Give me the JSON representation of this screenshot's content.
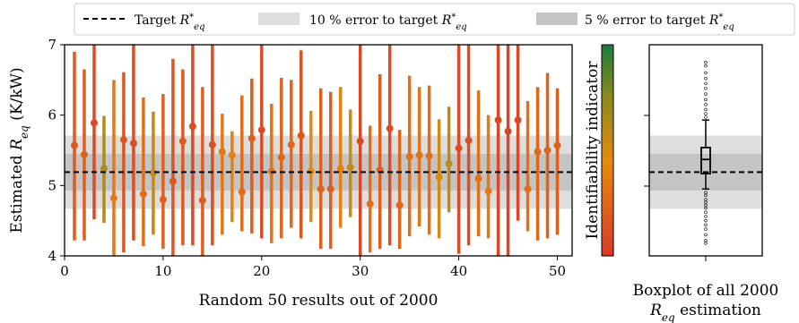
{
  "legend": {
    "target_label": "Target R*eq",
    "band10_label": "10 % error to target R*eq",
    "band5_label": "5 % error to target R*eq"
  },
  "colors": {
    "band10": "#dedede",
    "band5": "#c4c4c4",
    "colorbar_top": "#1e7a3c",
    "colorbar_mid": "#e08a10",
    "colorbar_bottom": "#d83a2a"
  },
  "main_plot": {
    "ylabel": "Estimated R_eq (K/kW)",
    "xlabel": "Random 50 results out of 2000",
    "yticks": [
      "4",
      "5",
      "6",
      "7"
    ],
    "xticks": [
      "0",
      "10",
      "20",
      "30",
      "40",
      "50"
    ],
    "colorbar_label": "Identifiability indicator"
  },
  "box_plot": {
    "xlabel_line1": "Boxplot of all 2000",
    "xlabel_line2": "R_eq estimation"
  },
  "chart_data": [
    {
      "type": "scatter",
      "title": "",
      "xlabel": "Random 50 results out of 2000",
      "ylabel": "Estimated R_eq (K/kW)",
      "xlim": [
        0,
        51.5
      ],
      "ylim": [
        4,
        7
      ],
      "target": 5.19,
      "band10": [
        4.67,
        5.71
      ],
      "band5": [
        4.93,
        5.45
      ],
      "grid": false,
      "legend_position": "top, outside",
      "colorbar": "Identifiability indicator",
      "x": [
        1,
        2,
        3,
        4,
        5,
        6,
        7,
        8,
        9,
        10,
        11,
        12,
        13,
        14,
        15,
        16,
        17,
        18,
        19,
        20,
        21,
        22,
        23,
        24,
        25,
        26,
        27,
        28,
        29,
        30,
        31,
        32,
        33,
        34,
        35,
        36,
        37,
        38,
        39,
        40,
        41,
        42,
        43,
        44,
        45,
        46,
        47,
        48,
        49,
        50
      ],
      "y": [
        5.57,
        5.44,
        5.89,
        5.24,
        4.82,
        5.65,
        5.6,
        4.88,
        5.18,
        4.8,
        5.06,
        5.63,
        5.84,
        4.79,
        5.58,
        5.48,
        5.43,
        4.91,
        5.67,
        5.79,
        5.2,
        5.4,
        5.58,
        5.71,
        5.2,
        4.95,
        4.95,
        5.24,
        5.26,
        5.63,
        4.74,
        5.22,
        5.81,
        4.72,
        5.41,
        5.43,
        5.42,
        5.12,
        5.31,
        5.53,
        5.64,
        5.1,
        4.92,
        5.93,
        5.77,
        5.93,
        4.95,
        5.48,
        5.5,
        5.57
      ],
      "y_lower": [
        4.22,
        4.22,
        4.52,
        4.47,
        3.95,
        4.05,
        4.22,
        4.14,
        4.3,
        4.1,
        3.97,
        4.15,
        4.15,
        3.98,
        4.15,
        4.3,
        4.48,
        4.35,
        4.32,
        4.25,
        4.18,
        4.25,
        4.4,
        4.25,
        4.48,
        4.1,
        4.1,
        4.4,
        4.55,
        4.0,
        4.05,
        4.1,
        4.15,
        4.1,
        4.28,
        4.42,
        4.3,
        4.25,
        4.62,
        4.03,
        4.15,
        4.28,
        4.25,
        4.0,
        3.95,
        4.5,
        4.35,
        4.22,
        4.25,
        4.3
      ],
      "y_upper": [
        6.9,
        6.65,
        7.0,
        5.99,
        6.5,
        6.61,
        7.0,
        6.25,
        6.05,
        6.3,
        6.8,
        6.65,
        7.0,
        6.4,
        7.0,
        6.02,
        5.77,
        6.28,
        6.52,
        7.0,
        6.16,
        6.53,
        6.5,
        6.92,
        6.06,
        6.38,
        6.33,
        6.4,
        6.08,
        7.0,
        5.85,
        6.58,
        7.0,
        5.79,
        6.56,
        6.4,
        6.42,
        5.94,
        6.12,
        7.0,
        7.0,
        6.35,
        6.0,
        7.0,
        7.0,
        7.0,
        6.2,
        6.4,
        6.6,
        6.38
      ],
      "identifiability": [
        0.18,
        0.2,
        0.1,
        0.62,
        0.35,
        0.15,
        0.12,
        0.3,
        0.55,
        0.22,
        0.15,
        0.18,
        0.1,
        0.2,
        0.12,
        0.35,
        0.4,
        0.28,
        0.2,
        0.1,
        0.32,
        0.24,
        0.26,
        0.15,
        0.45,
        0.22,
        0.2,
        0.4,
        0.55,
        0.08,
        0.3,
        0.2,
        0.1,
        0.25,
        0.3,
        0.32,
        0.3,
        0.5,
        0.58,
        0.1,
        0.12,
        0.3,
        0.35,
        0.08,
        0.06,
        0.08,
        0.3,
        0.25,
        0.22,
        0.2
      ]
    },
    {
      "type": "box",
      "title": "",
      "xlabel": "Boxplot of all 2000 R_eq estimation",
      "ylim": [
        4,
        7
      ],
      "target": 5.19,
      "median": 5.37,
      "q1": 5.17,
      "q3": 5.54,
      "whisker_low": 4.95,
      "whisker_high": 5.93,
      "outliers_low": [
        4.9,
        4.86,
        4.8,
        4.76,
        4.72,
        4.68,
        4.62,
        4.56,
        4.5,
        4.44,
        4.38,
        4.3,
        4.22,
        4.18
      ],
      "outliers_high": [
        5.97,
        6.02,
        6.08,
        6.15,
        6.22,
        6.3,
        6.38,
        6.45,
        6.52,
        6.6,
        6.7,
        6.75
      ]
    }
  ]
}
